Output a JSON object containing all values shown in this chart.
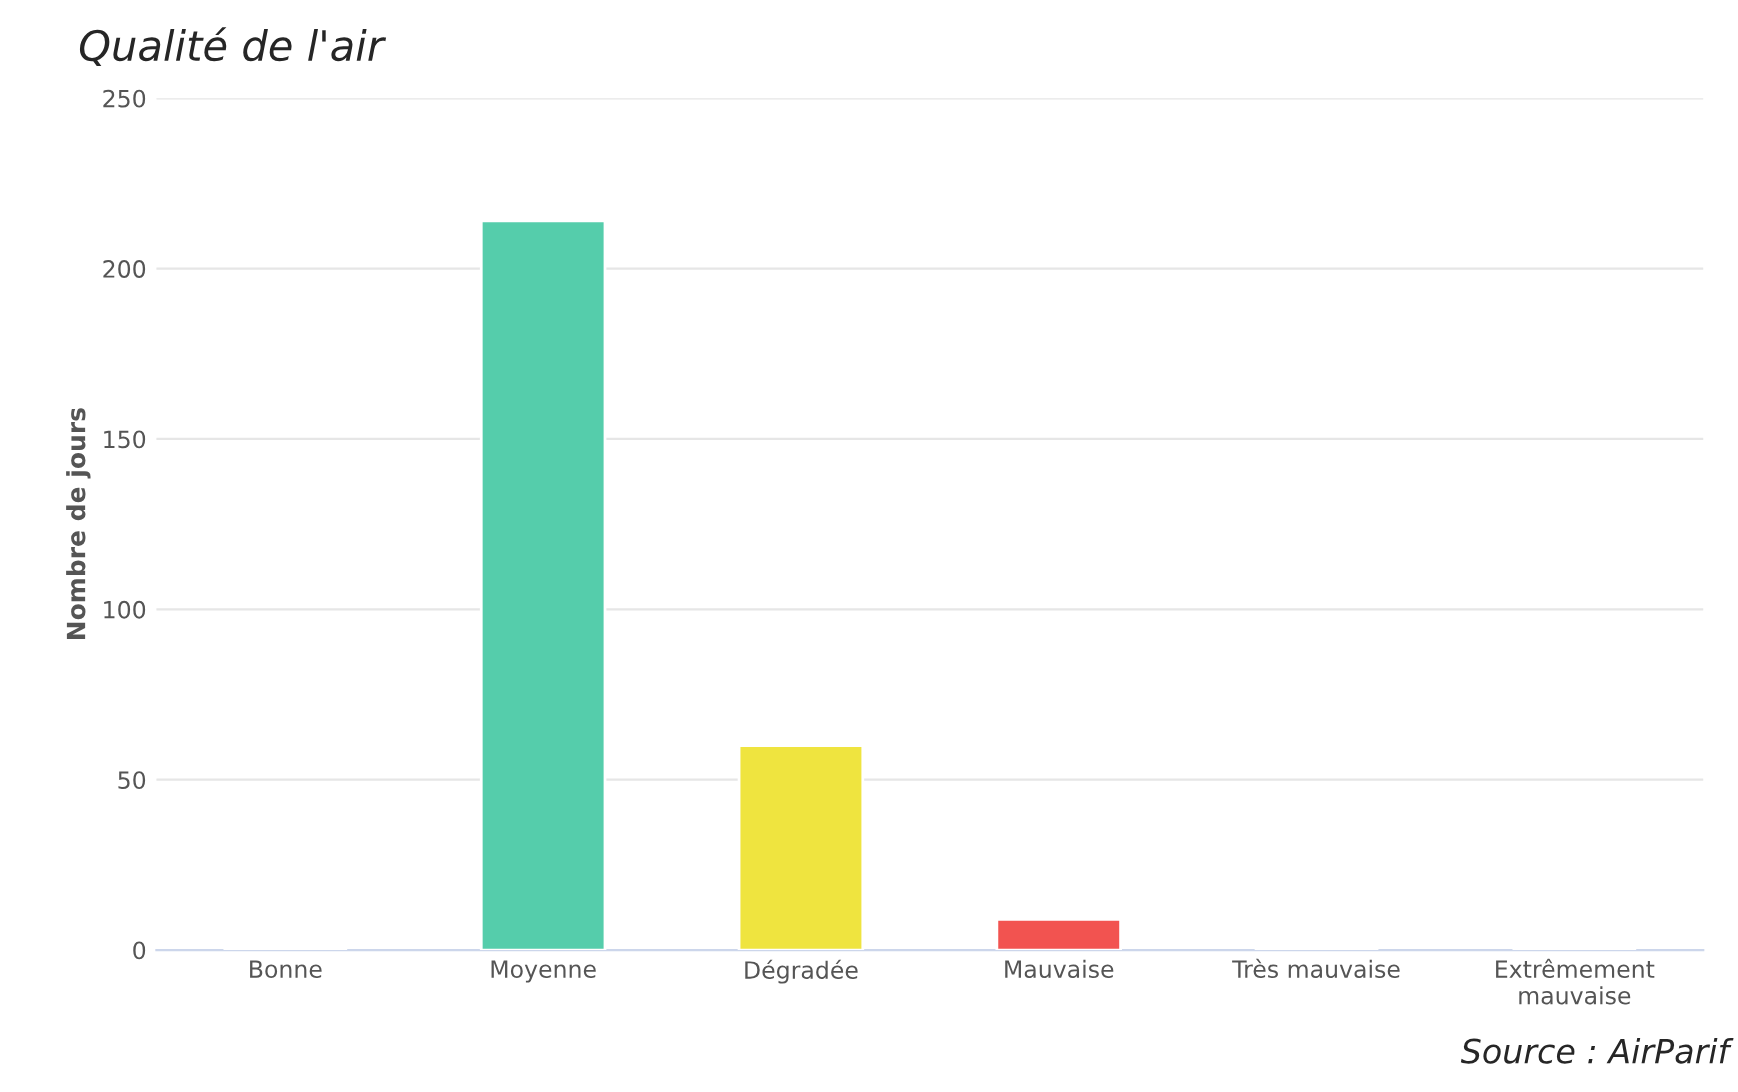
{
  "chart_data": {
    "type": "bar",
    "title": "Qualité de l'air",
    "ylabel": "Nombre de jours",
    "categories": [
      "Bonne",
      "Moyenne",
      "Dégradée",
      "Mauvaise",
      "Très mauvaise",
      "Extrêmement\nmauvaise"
    ],
    "values": [
      0,
      214,
      60,
      9,
      0,
      0
    ],
    "colors": [
      null,
      "#55cdab",
      "#efe43f",
      "#f25350",
      null,
      null
    ],
    "ylim": [
      0,
      250
    ],
    "yticks": [
      0,
      50,
      100,
      150,
      200,
      250
    ],
    "grid": "y",
    "annotations": [
      "Source : AirParif"
    ]
  }
}
